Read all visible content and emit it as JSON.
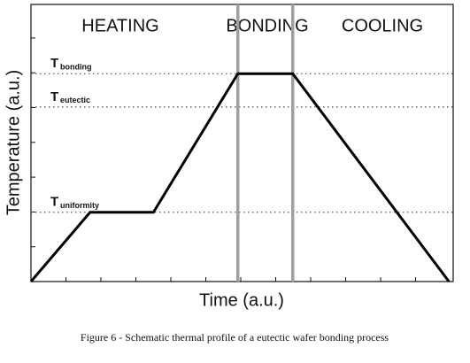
{
  "chart_data": {
    "type": "line",
    "phases": [
      "HEATING",
      "BONDING",
      "COOLING"
    ],
    "x_label": "Time (a.u.)",
    "y_label": "Temperature (a.u.)",
    "caption": "Figure 6 - Schematic thermal profile of a eutectic wafer bonding process",
    "x": [
      0,
      14,
      29,
      49,
      62,
      99
    ],
    "values": [
      0,
      25,
      25,
      75,
      75,
      0
    ],
    "color": "#000000",
    "xlim": [
      0,
      100
    ],
    "ylim": [
      0,
      100
    ],
    "reference_lines": [
      {
        "label": "T",
        "sub": "bonding",
        "value": 75
      },
      {
        "label": "T",
        "sub": "eutectic",
        "value": 63
      },
      {
        "label": "T",
        "sub": "uniformity",
        "value": 25
      }
    ],
    "reference_color": "#555555",
    "phase_boundaries": [
      49,
      62
    ],
    "boundary_color": "#a0a0a0"
  }
}
